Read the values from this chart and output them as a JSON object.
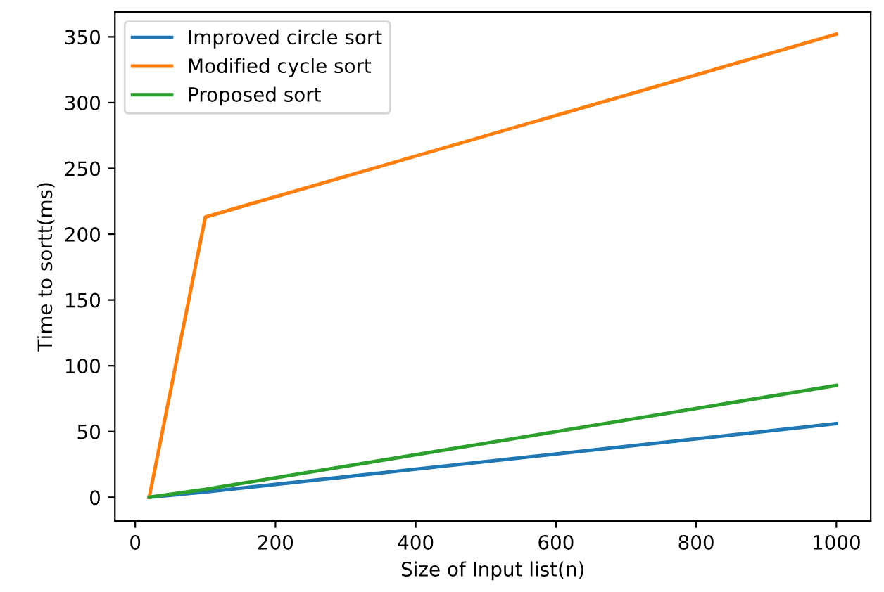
{
  "chart_data": {
    "type": "line",
    "xlabel": "Size of Input list(n)",
    "ylabel": "Time to sortt(ms)",
    "x": [
      20,
      100,
      1000
    ],
    "series": [
      {
        "name": "Improved circle sort",
        "color": "#1f77b4",
        "values": [
          0,
          4,
          56
        ]
      },
      {
        "name": "Modified cycle sort",
        "color": "#ff7f0e",
        "values": [
          0,
          213,
          352
        ]
      },
      {
        "name": "Proposed sort",
        "color": "#2ca02c",
        "values": [
          0,
          6,
          85
        ]
      }
    ],
    "xlim": [
      -29,
      1049
    ],
    "ylim": [
      -18,
      369
    ],
    "xticks": [
      0,
      200,
      400,
      600,
      800,
      1000
    ],
    "yticks": [
      0,
      50,
      100,
      150,
      200,
      250,
      300,
      350
    ],
    "legend": "top left",
    "grid": false
  }
}
